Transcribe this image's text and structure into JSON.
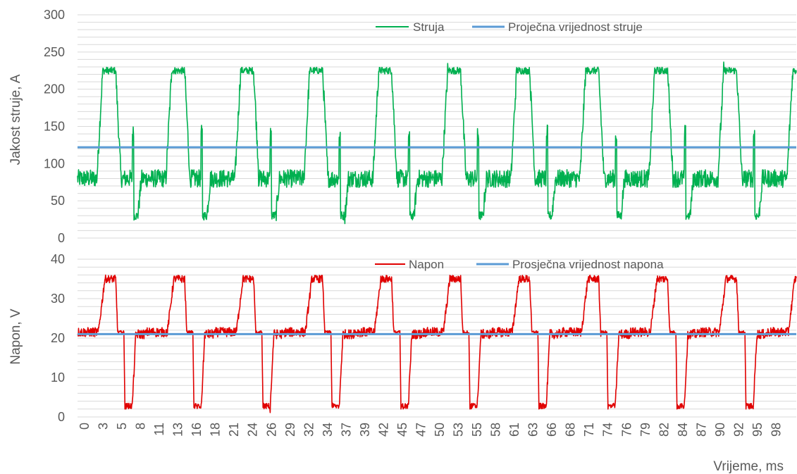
{
  "chart_data": [
    {
      "type": "line",
      "ylabel": "Jakost struje, A",
      "ylim": [
        0,
        300
      ],
      "yticks": [
        "0",
        "50",
        "100",
        "150",
        "200",
        "250",
        "300"
      ],
      "grid": true,
      "legend": "top-right",
      "series": [
        {
          "name": "Struja",
          "color": "#00b050",
          "waveform": {
            "period_ms": 9.6,
            "start_ms": 0,
            "end_ms": 100,
            "baseline": 80,
            "peak": 225,
            "peak_start_ms": 3.5,
            "peak_end_ms": 5.3,
            "secondary_spike": 140,
            "secondary_spike_ms": 7.8,
            "trough": 30,
            "trough_ms": 8.4,
            "noise": 12
          }
        },
        {
          "name": "Proječna vrijednost struje",
          "color": "#5b9bd5",
          "values": [
            122
          ]
        }
      ]
    },
    {
      "type": "line",
      "xlabel": "Vrijeme, ms",
      "ylabel": "Napon, V",
      "ylim": [
        0,
        40
      ],
      "yticks": [
        "0",
        "10",
        "20",
        "30",
        "40"
      ],
      "xticks": [
        "0",
        "3",
        "5",
        "8",
        "11",
        "13",
        "16",
        "18",
        "21",
        "24",
        "26",
        "29",
        "32",
        "34",
        "37",
        "39",
        "42",
        "45",
        "47",
        "50",
        "53",
        "55",
        "58",
        "61",
        "63",
        "66",
        "68",
        "71",
        "74",
        "76",
        "79",
        "82",
        "84",
        "87",
        "90",
        "92",
        "95",
        "98"
      ],
      "grid": true,
      "legend": "top-right",
      "series": [
        {
          "name": "Napon",
          "color": "#e00000",
          "waveform": {
            "period_ms": 9.6,
            "start_ms": 0,
            "end_ms": 100,
            "baseline": 21.5,
            "peak": 35,
            "peak_start_ms": 3.8,
            "peak_end_ms": 5.3,
            "dip": 2,
            "dip_start_ms": 6.6,
            "dip_end_ms": 7.6,
            "noise": 1.2
          }
        },
        {
          "name": "Prosječna vrijednost napona",
          "color": "#5b9bd5",
          "values": [
            21
          ]
        }
      ]
    }
  ]
}
